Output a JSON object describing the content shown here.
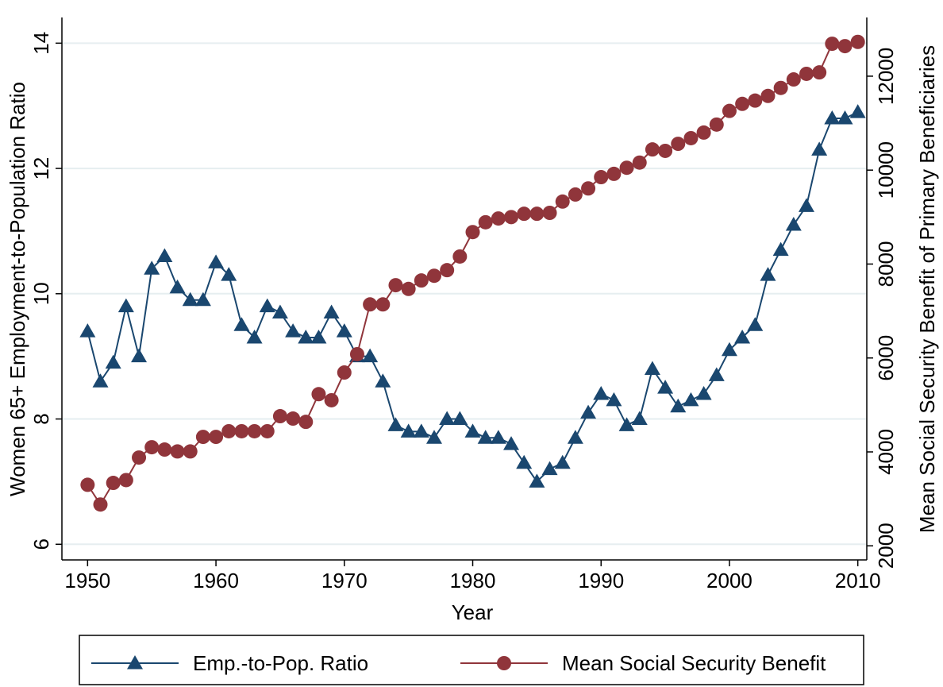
{
  "chart_data": {
    "type": "line",
    "xlabel": "Year",
    "ylabel": "Women 65+ Employment-to-Population Ratio",
    "y2label": "Mean Social Security Benefit of Primary Beneficiaries",
    "x": [
      1950,
      1951,
      1952,
      1953,
      1954,
      1955,
      1956,
      1957,
      1958,
      1959,
      1960,
      1961,
      1962,
      1963,
      1964,
      1965,
      1966,
      1967,
      1968,
      1969,
      1970,
      1971,
      1972,
      1973,
      1974,
      1975,
      1976,
      1977,
      1978,
      1979,
      1980,
      1981,
      1982,
      1983,
      1984,
      1985,
      1986,
      1987,
      1988,
      1989,
      1990,
      1991,
      1992,
      1993,
      1994,
      1995,
      1996,
      1997,
      1998,
      1999,
      2000,
      2001,
      2002,
      2003,
      2004,
      2005,
      2006,
      2007,
      2008,
      2009,
      2010
    ],
    "series": [
      {
        "name": "Emp.-to-Pop. Ratio",
        "color": "#1a476f",
        "marker": "triangle",
        "values": [
          9.4,
          8.6,
          8.9,
          9.8,
          9.0,
          10.4,
          10.6,
          10.1,
          9.9,
          9.9,
          10.5,
          10.3,
          9.5,
          9.3,
          9.8,
          9.7,
          9.4,
          9.3,
          9.3,
          9.7,
          9.4,
          9.0,
          9.0,
          8.6,
          7.9,
          7.8,
          7.8,
          7.7,
          8.0,
          8.0,
          7.8,
          7.7,
          7.7,
          7.6,
          7.3,
          7.0,
          7.2,
          7.3,
          7.7,
          8.1,
          8.4,
          8.3,
          7.9,
          8.0,
          8.8,
          8.5,
          8.2,
          8.3,
          8.4,
          8.7,
          9.1,
          9.3,
          9.5,
          10.3,
          10.7,
          11.1,
          11.4,
          12.3,
          12.8,
          12.8,
          12.9
        ]
      },
      {
        "name": "Mean Social Security Benefit",
        "color": "#90353b",
        "marker": "circle",
        "axis": "y2",
        "values": [
          3300,
          2880,
          3340,
          3400,
          3880,
          4100,
          4050,
          4010,
          4010,
          4320,
          4320,
          4440,
          4440,
          4440,
          4440,
          4760,
          4710,
          4640,
          5230,
          5100,
          5690,
          6080,
          7140,
          7140,
          7550,
          7470,
          7650,
          7750,
          7870,
          8160,
          8680,
          8890,
          8970,
          9000,
          9070,
          9070,
          9090,
          9330,
          9480,
          9610,
          9850,
          9920,
          10050,
          10160,
          10440,
          10410,
          10560,
          10680,
          10800,
          10970,
          11260,
          11410,
          11480,
          11580,
          11750,
          11930,
          12050,
          12080,
          12690,
          12640,
          12730
        ]
      }
    ],
    "xlim": [
      1948,
      2010.7
    ],
    "xticks": [
      1950,
      1960,
      1970,
      1980,
      1990,
      2000,
      2010
    ],
    "ylim": [
      5.75,
      14.41
    ],
    "yticks": [
      6,
      8,
      10,
      12,
      14
    ],
    "y2lim": [
      1700,
      13250
    ],
    "y2ticks": [
      2000,
      4000,
      6000,
      8000,
      10000,
      12000
    ],
    "grid": true,
    "legend": "bottom"
  }
}
